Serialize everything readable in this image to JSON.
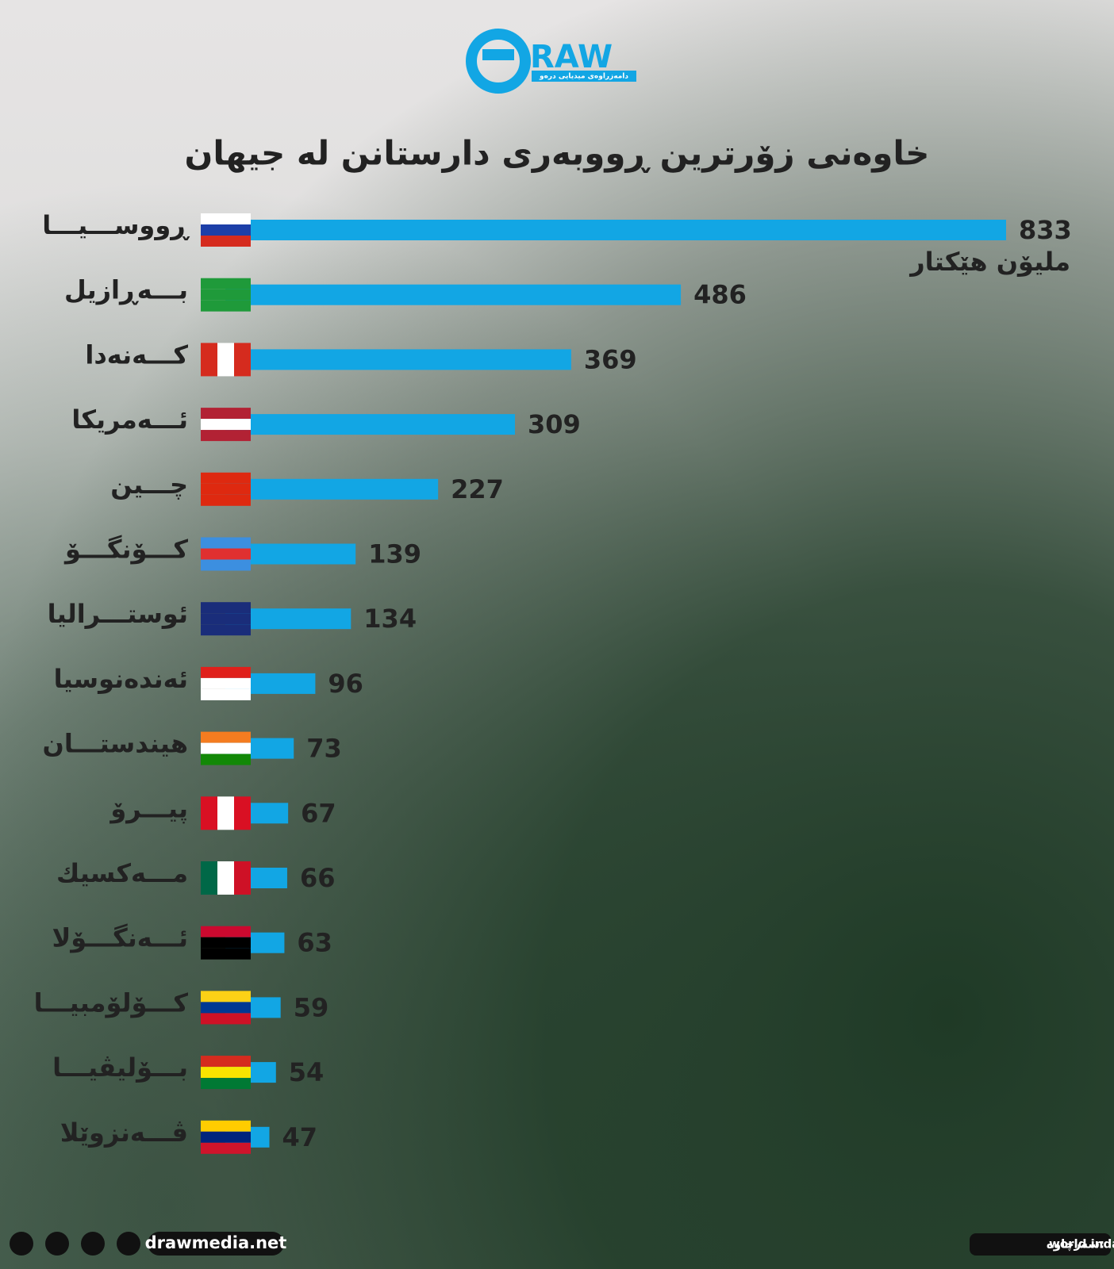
{
  "brand": {
    "logo_text": "RAW",
    "logo_subtitle": "دامەزراوەی میدیایی درەو"
  },
  "chart_data": {
    "type": "hbar",
    "title": "خاوەنی زۆرترین ڕووبەری دارستانن لە جیهان",
    "unit_label": "ملیۆن هێکتار",
    "categories": [
      "ڕووســـیـــا",
      "بـــەڕازیل",
      "کـــەنەدا",
      "ئـــەمریکا",
      "چـــین",
      "کـــۆنگـــۆ",
      "ئوستـــرالیا",
      "ئەندەنوسیا",
      "هیندستـــان",
      "پیـــرۆ",
      "مـــەکسیك",
      "ئـــەنگـــۆلا",
      "کـــۆلۆمبیـــا",
      "بـــۆلیڤیـــا",
      "ڤـــەنزوێلا"
    ],
    "values": [
      833,
      486,
      369,
      309,
      227,
      139,
      134,
      96,
      73,
      67,
      66,
      63,
      59,
      54,
      47
    ],
    "color": "#12a6e4",
    "xlim": [
      0,
      833
    ]
  },
  "footer": {
    "website": "drawmedia.net",
    "source_label": "سەرچاوە:",
    "source": "world indata"
  }
}
